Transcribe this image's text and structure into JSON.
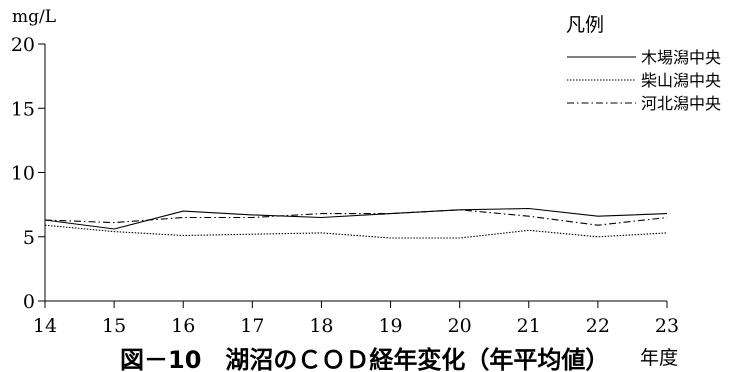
{
  "chart_data": {
    "type": "line",
    "title": "図－10　湖沼のＣＯＤ経年変化（年平均値）",
    "xlabel": "年度",
    "ylabel": "mg/L",
    "x": [
      14,
      15,
      16,
      17,
      18,
      19,
      20,
      21,
      22,
      23
    ],
    "xlim": [
      14,
      23
    ],
    "ylim": [
      0,
      20
    ],
    "yticks": [
      0,
      5,
      10,
      15,
      20
    ],
    "grid": false,
    "legend_title": "凡例",
    "legend_position": "top-right",
    "series": [
      {
        "name": "木場潟中央",
        "style": "solid",
        "color": "#000000",
        "values": [
          6.3,
          5.6,
          7.0,
          6.7,
          6.5,
          6.8,
          7.1,
          7.2,
          6.6,
          6.8
        ]
      },
      {
        "name": "柴山潟中央",
        "style": "dotted",
        "color": "#000000",
        "values": [
          5.9,
          5.4,
          5.1,
          5.2,
          5.3,
          4.9,
          4.9,
          5.5,
          5.0,
          5.3
        ]
      },
      {
        "name": "河北潟中央",
        "style": "dashdot",
        "color": "#000000",
        "values": [
          6.3,
          6.1,
          6.5,
          6.5,
          6.8,
          6.8,
          7.1,
          6.6,
          5.9,
          6.5
        ]
      }
    ]
  }
}
